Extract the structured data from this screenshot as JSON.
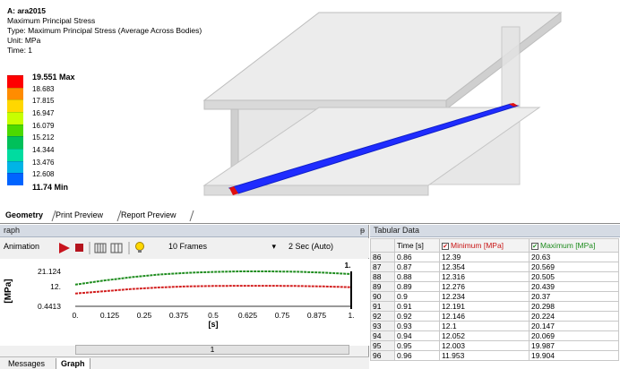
{
  "result": {
    "title": "A: ara2015",
    "lines": [
      "Maximum Principal Stress",
      "Type: Maximum Principal Stress (Average Across Bodies)",
      "Unit: MPa",
      "Time: 1"
    ]
  },
  "legend": {
    "labels": [
      "19.551 Max",
      "18.683",
      "17.815",
      "16.947",
      "16.079",
      "15.212",
      "14.344",
      "13.476",
      "12.608",
      "11.74 Min"
    ],
    "colors": [
      "#ff0000",
      "#ff8c00",
      "#ffd700",
      "#c8ff00",
      "#4cd900",
      "#00c05a",
      "#00dca0",
      "#00b4e6",
      "#0064ff",
      "#0000ff"
    ]
  },
  "view_tabs": [
    "Geometry",
    "Print Preview",
    "Report Preview"
  ],
  "graph_panel": {
    "header": "raph",
    "pin": "ᵽ",
    "animation_label": "Animation",
    "frames": "10 Frames",
    "duration": "2 Sec (Auto)",
    "ylabel": "[MPa]",
    "xlabel": "[s]",
    "yticks": [
      "21.124",
      "12.",
      "0.4413"
    ],
    "xticks": [
      "0.",
      "0.125",
      "0.25",
      "0.375",
      "0.5",
      "0.625",
      "0.75",
      "0.875",
      "1."
    ],
    "top_marker": "1.",
    "time_value": "1"
  },
  "bottom_tabs": [
    "Messages",
    "Graph"
  ],
  "tabular": {
    "header": "Tabular Data",
    "columns": [
      "Time [s]",
      "Minimum [MPa]",
      "Maximum [MPa]"
    ],
    "rows": [
      [
        "86",
        "0.86",
        "12.39",
        "20.63"
      ],
      [
        "87",
        "0.87",
        "12.354",
        "20.569"
      ],
      [
        "88",
        "0.88",
        "12.316",
        "20.505"
      ],
      [
        "89",
        "0.89",
        "12.276",
        "20.439"
      ],
      [
        "90",
        "0.9",
        "12.234",
        "20.37"
      ],
      [
        "91",
        "0.91",
        "12.191",
        "20.298"
      ],
      [
        "92",
        "0.92",
        "12.146",
        "20.224"
      ],
      [
        "93",
        "0.93",
        "12.1",
        "20.147"
      ],
      [
        "94",
        "0.94",
        "12.052",
        "20.069"
      ],
      [
        "95",
        "0.95",
        "12.003",
        "19.987"
      ],
      [
        "96",
        "0.96",
        "11.953",
        "19.904"
      ]
    ]
  },
  "chart_data": {
    "type": "line",
    "xlabel": "[s]",
    "ylabel": "[MPa]",
    "xlim": [
      0,
      1
    ],
    "ylim": [
      0.4413,
      21.124
    ],
    "series": [
      {
        "name": "Maximum [MPa]",
        "color": "#1e8c1e",
        "x": [
          0,
          0.1,
          0.2,
          0.3,
          0.4,
          0.5,
          0.6,
          0.7,
          0.8,
          0.9,
          1.0
        ],
        "values": [
          13.3,
          15.6,
          17.6,
          19.2,
          20.2,
          20.8,
          21.1,
          21.1,
          20.9,
          20.37,
          19.551
        ]
      },
      {
        "name": "Minimum [MPa]",
        "color": "#d21e1e",
        "x": [
          0,
          0.1,
          0.2,
          0.3,
          0.4,
          0.5,
          0.6,
          0.7,
          0.8,
          0.9,
          1.0
        ],
        "values": [
          8.0,
          9.3,
          10.6,
          11.6,
          12.2,
          12.5,
          12.6,
          12.6,
          12.5,
          12.234,
          11.74
        ]
      }
    ]
  }
}
